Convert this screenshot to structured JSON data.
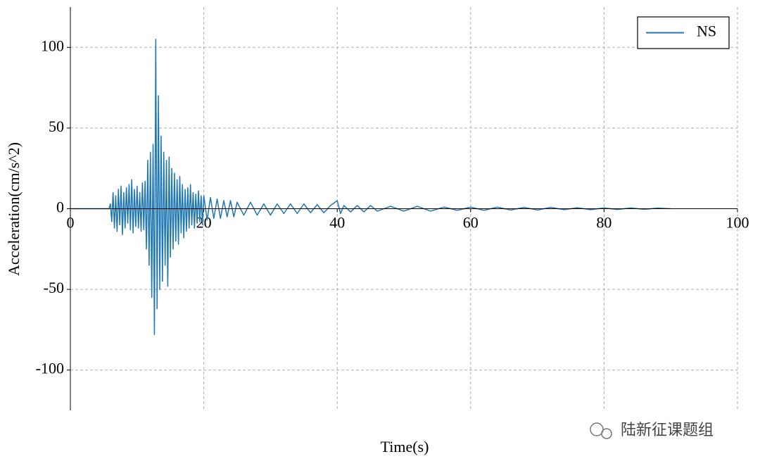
{
  "chart_data": {
    "type": "line",
    "xlabel": "Time(s)",
    "ylabel": "Acceleration(cm/s^2)",
    "watermark": "陆新征课题组",
    "x": [
      0,
      5.8,
      6.0,
      6.2,
      6.4,
      6.6,
      6.8,
      7.0,
      7.2,
      7.4,
      7.6,
      7.8,
      8.0,
      8.2,
      8.4,
      8.6,
      8.8,
      9.0,
      9.2,
      9.4,
      9.6,
      9.8,
      10.0,
      10.2,
      10.4,
      10.6,
      10.8,
      11.0,
      11.2,
      11.4,
      11.6,
      11.8,
      12.0,
      12.2,
      12.4,
      12.6,
      12.8,
      13.0,
      13.2,
      13.4,
      13.6,
      13.8,
      14.0,
      14.2,
      14.4,
      14.6,
      14.8,
      15.0,
      15.2,
      15.4,
      15.6,
      15.8,
      16.0,
      16.2,
      16.4,
      16.6,
      16.8,
      17.0,
      17.2,
      17.4,
      17.6,
      17.8,
      18.0,
      18.2,
      18.4,
      18.6,
      18.8,
      19.0,
      19.2,
      19.4,
      19.6,
      19.8,
      20.0,
      20.5,
      21,
      21.5,
      22,
      22.5,
      23,
      23.5,
      24,
      24.5,
      25,
      26,
      27,
      28,
      29,
      30,
      31,
      32,
      33,
      34,
      35,
      36,
      37,
      38,
      39,
      40,
      40.5,
      41,
      42,
      43,
      44,
      45,
      46,
      48,
      50,
      52,
      54,
      56,
      58,
      60,
      62,
      64,
      66,
      68,
      70,
      72,
      74,
      76,
      78,
      80,
      82,
      84,
      86,
      88,
      90
    ],
    "series": [
      {
        "name": "NS",
        "color": "#1f77b4",
        "values": [
          0,
          0,
          3,
          -8,
          10,
          -12,
          8,
          -14,
          12,
          -10,
          14,
          -16,
          10,
          -12,
          13,
          -9,
          15,
          -13,
          18,
          -15,
          12,
          -11,
          14,
          -12,
          10,
          -14,
          16,
          -13,
          17,
          -25,
          30,
          -35,
          35,
          -55,
          40,
          -78,
          105,
          -62,
          70,
          -50,
          45,
          -45,
          35,
          -35,
          30,
          -48,
          32,
          -30,
          25,
          -25,
          22,
          -20,
          18,
          -22,
          20,
          -15,
          15,
          -18,
          12,
          -14,
          13,
          -12,
          15,
          -10,
          10,
          -12,
          9,
          -9,
          11,
          -8,
          8,
          -10,
          8,
          -7,
          7,
          -6,
          6,
          -6,
          5,
          -5,
          5,
          -5,
          4,
          -4,
          4,
          -4,
          3,
          -4,
          3,
          -3,
          3,
          -3,
          3,
          -2.5,
          2.5,
          -2.5,
          2,
          5,
          -3,
          2,
          -2,
          2,
          -2,
          2,
          -1.5,
          1.5,
          -1.5,
          1.5,
          -1.5,
          1,
          -1,
          1,
          -1,
          1,
          -0.8,
          0.8,
          -0.8,
          0.8,
          -0.6,
          0.6,
          -0.6,
          0.5,
          -0.5,
          0.5,
          -0.4,
          0.4,
          0
        ]
      }
    ],
    "xlim": [
      0,
      100
    ],
    "ylim": [
      -125,
      125
    ],
    "xticks": [
      0,
      20,
      40,
      60,
      80,
      100
    ],
    "yticks": [
      -100,
      -50,
      0,
      50,
      100
    ],
    "grid": true,
    "legend": "upper right"
  }
}
